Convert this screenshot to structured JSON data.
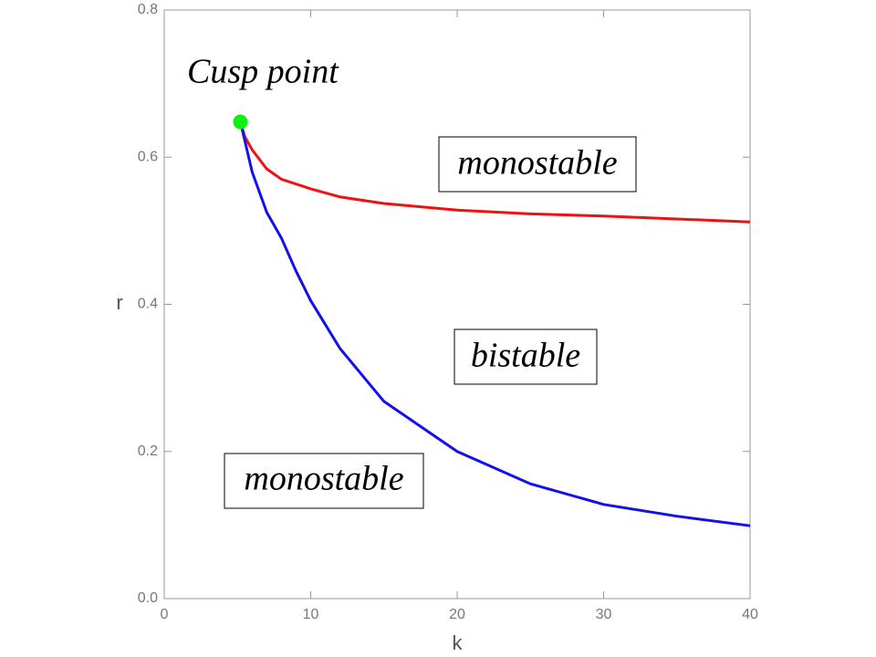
{
  "chart_data": {
    "type": "line",
    "xlabel": "k",
    "ylabel": "r",
    "xlim": [
      0,
      40
    ],
    "ylim": [
      0,
      0.8
    ],
    "xticks": [
      0,
      10,
      20,
      30,
      40
    ],
    "yticks": [
      {
        "value": 0,
        "label": "0.0"
      },
      0.2,
      0.4,
      0.6,
      0.8
    ],
    "series": [
      {
        "color": "#ee1111",
        "x": [
          5.2,
          5.5,
          6,
          7,
          8,
          10,
          12,
          15,
          20,
          25,
          30,
          35,
          40
        ],
        "values": [
          0.648,
          0.628,
          0.61,
          0.584,
          0.57,
          0.557,
          0.546,
          0.537,
          0.528,
          0.523,
          0.52,
          0.516,
          0.512
        ]
      },
      {
        "color": "#1111ee",
        "x": [
          5.2,
          6,
          7,
          8,
          9,
          10,
          12,
          15,
          20,
          25,
          30,
          35,
          40
        ],
        "values": [
          0.648,
          0.58,
          0.525,
          0.49,
          0.445,
          0.405,
          0.34,
          0.268,
          0.2,
          0.156,
          0.128,
          0.112,
          0.099
        ]
      }
    ],
    "point": {
      "x": 5.2,
      "y": 0.648,
      "color": "#11ee11"
    },
    "annotations": [
      "Cusp point",
      "monostable",
      "bistable",
      "monostable"
    ]
  }
}
